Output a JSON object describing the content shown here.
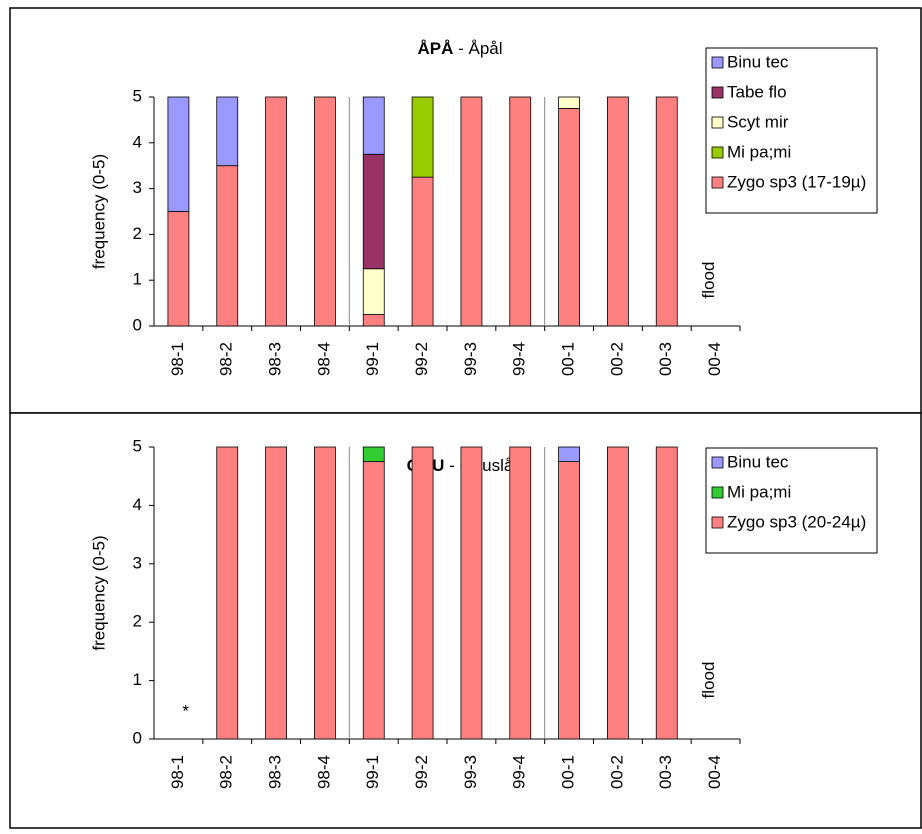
{
  "chart_data": [
    {
      "type": "bar",
      "stacked": true,
      "title_bold": "ÅPÅ",
      "title": "- Åpål",
      "ylabel": "frequency (0-5)",
      "categories": [
        "98-1",
        "98-2",
        "98-3",
        "98-4",
        "99-1",
        "99-2",
        "99-3",
        "99-4",
        "00-1",
        "00-2",
        "00-3",
        "00-4"
      ],
      "series": [
        {
          "name": "Binu tec",
          "color": "#9999ff",
          "values": [
            2.5,
            1.5,
            0,
            0,
            1.25,
            0,
            0,
            0,
            0,
            0,
            0,
            0
          ]
        },
        {
          "name": "Tabe flo",
          "color": "#993366",
          "values": [
            0,
            0,
            0,
            0,
            2.5,
            0,
            0,
            0,
            0,
            0,
            0,
            0
          ]
        },
        {
          "name": "Scyt mir",
          "color": "#ffffcc",
          "values": [
            0,
            0,
            0,
            0,
            1,
            0,
            0,
            0,
            0.25,
            0,
            0,
            0
          ]
        },
        {
          "name": "Mi pa;mi",
          "color": "#99cc00",
          "values": [
            0,
            0,
            0,
            0,
            0,
            1.75,
            0,
            0,
            0,
            0,
            0,
            0
          ]
        },
        {
          "name": "Zygo sp3 (17-19µ)",
          "color": "#ff8080",
          "values": [
            2.5,
            3.5,
            5,
            5,
            0.25,
            3.25,
            5,
            5,
            4.75,
            5,
            5,
            0
          ]
        }
      ],
      "ylim": [
        0,
        5
      ],
      "yticks": [
        0,
        1,
        2,
        3,
        4,
        5
      ],
      "annotations": [
        "flood"
      ]
    },
    {
      "type": "bar",
      "stacked": true,
      "title_bold": "GAU",
      "title": "- Gauslå",
      "ylabel": "frequency (0-5)",
      "categories": [
        "98-1",
        "98-2",
        "98-3",
        "98-4",
        "99-1",
        "99-2",
        "99-3",
        "99-4",
        "00-1",
        "00-2",
        "00-3",
        "00-4"
      ],
      "series": [
        {
          "name": "Binu tec",
          "color": "#9999ff",
          "values": [
            0,
            0,
            0,
            0,
            0,
            0,
            0,
            0,
            0.25,
            0,
            0,
            0
          ]
        },
        {
          "name": "Mi pa;mi",
          "color": "#33cc33",
          "values": [
            0,
            0,
            0,
            0,
            0.25,
            0,
            0,
            0,
            0,
            0,
            0,
            0
          ]
        },
        {
          "name": "Zygo sp3 (20-24µ)",
          "color": "#ff8080",
          "values": [
            0,
            5,
            5,
            5,
            4.75,
            5,
            5,
            5,
            4.75,
            5,
            5,
            0
          ]
        }
      ],
      "ylim": [
        0,
        5
      ],
      "yticks": [
        0,
        1,
        2,
        3,
        4,
        5
      ],
      "annotations": [
        "*",
        "flood"
      ]
    }
  ]
}
